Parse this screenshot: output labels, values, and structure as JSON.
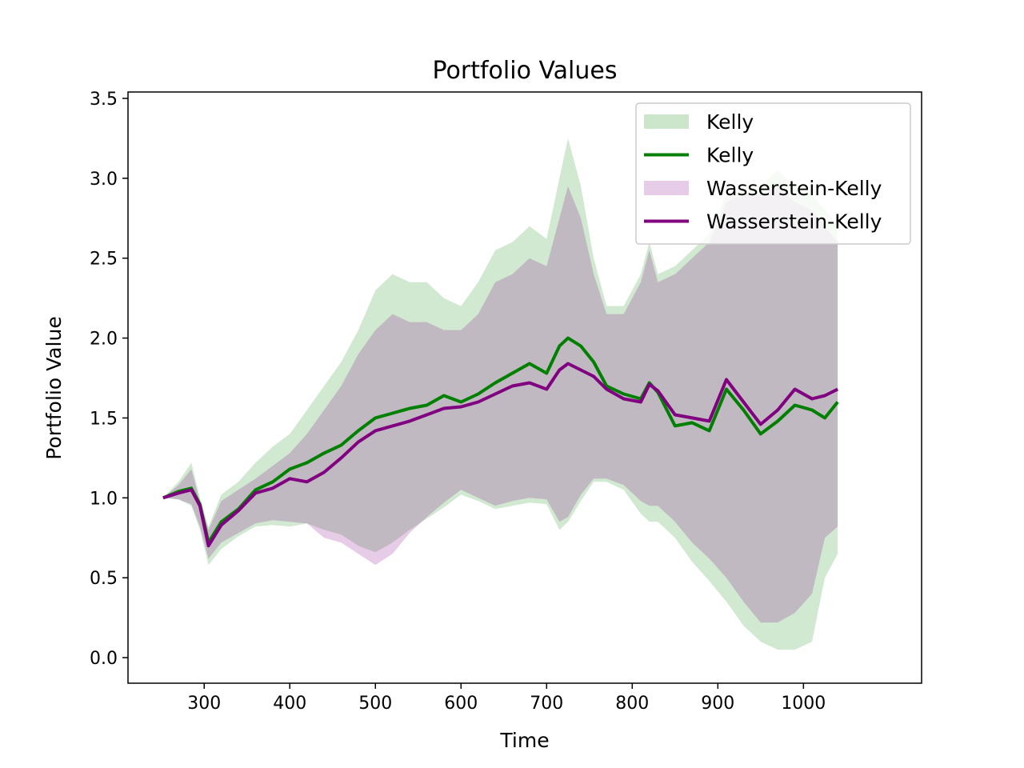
{
  "chart_data": {
    "type": "line",
    "title": "Portfolio Values",
    "xlabel": "Time",
    "ylabel": "Portfolio Value",
    "xlim": [
      211,
      1138
    ],
    "ylim": [
      -0.16,
      3.54
    ],
    "x_ticks": [
      300,
      400,
      500,
      600,
      700,
      800,
      900,
      1000
    ],
    "x_tick_labels": [
      "300",
      "400",
      "500",
      "600",
      "700",
      "800",
      "900",
      "1000"
    ],
    "y_ticks": [
      0.0,
      0.5,
      1.0,
      1.5,
      2.0,
      2.5,
      3.0,
      3.5
    ],
    "y_tick_labels": [
      "0.0",
      "0.5",
      "1.0",
      "1.5",
      "2.0",
      "2.5",
      "3.0",
      "3.5"
    ],
    "grid": false,
    "legend_position": "top-right",
    "legend": [
      {
        "label": "Kelly",
        "kind": "band",
        "color": "#008000"
      },
      {
        "label": "Kelly",
        "kind": "line",
        "color": "#008000"
      },
      {
        "label": "Wasserstein-Kelly",
        "kind": "band",
        "color": "#800080"
      },
      {
        "label": "Wasserstein-Kelly",
        "kind": "line",
        "color": "#800080"
      }
    ],
    "series": [
      {
        "name": "Kelly",
        "color": "#008000",
        "points": [
          [
            252,
            1.0
          ],
          [
            270,
            1.04
          ],
          [
            285,
            1.06
          ],
          [
            295,
            0.96
          ],
          [
            305,
            0.72
          ],
          [
            320,
            0.85
          ],
          [
            340,
            0.93
          ],
          [
            360,
            1.05
          ],
          [
            380,
            1.1
          ],
          [
            400,
            1.18
          ],
          [
            420,
            1.22
          ],
          [
            440,
            1.28
          ],
          [
            460,
            1.33
          ],
          [
            480,
            1.42
          ],
          [
            500,
            1.5
          ],
          [
            520,
            1.53
          ],
          [
            540,
            1.56
          ],
          [
            560,
            1.58
          ],
          [
            580,
            1.64
          ],
          [
            600,
            1.6
          ],
          [
            620,
            1.65
          ],
          [
            640,
            1.72
          ],
          [
            660,
            1.78
          ],
          [
            680,
            1.84
          ],
          [
            700,
            1.78
          ],
          [
            715,
            1.95
          ],
          [
            725,
            2.0
          ],
          [
            740,
            1.95
          ],
          [
            755,
            1.85
          ],
          [
            770,
            1.7
          ],
          [
            790,
            1.65
          ],
          [
            810,
            1.62
          ],
          [
            820,
            1.72
          ],
          [
            830,
            1.66
          ],
          [
            850,
            1.45
          ],
          [
            870,
            1.47
          ],
          [
            890,
            1.42
          ],
          [
            910,
            1.68
          ],
          [
            930,
            1.55
          ],
          [
            950,
            1.4
          ],
          [
            970,
            1.48
          ],
          [
            990,
            1.58
          ],
          [
            1010,
            1.55
          ],
          [
            1025,
            1.5
          ],
          [
            1040,
            1.6
          ]
        ],
        "band_upper": [
          [
            252,
            1.0
          ],
          [
            270,
            1.1
          ],
          [
            285,
            1.22
          ],
          [
            295,
            1.0
          ],
          [
            305,
            0.82
          ],
          [
            320,
            1.02
          ],
          [
            340,
            1.1
          ],
          [
            360,
            1.22
          ],
          [
            380,
            1.32
          ],
          [
            400,
            1.4
          ],
          [
            420,
            1.55
          ],
          [
            440,
            1.7
          ],
          [
            460,
            1.85
          ],
          [
            480,
            2.05
          ],
          [
            500,
            2.3
          ],
          [
            520,
            2.4
          ],
          [
            540,
            2.35
          ],
          [
            560,
            2.35
          ],
          [
            580,
            2.25
          ],
          [
            600,
            2.2
          ],
          [
            620,
            2.35
          ],
          [
            640,
            2.55
          ],
          [
            660,
            2.6
          ],
          [
            680,
            2.7
          ],
          [
            700,
            2.62
          ],
          [
            715,
            3.0
          ],
          [
            725,
            3.25
          ],
          [
            740,
            2.95
          ],
          [
            755,
            2.5
          ],
          [
            770,
            2.2
          ],
          [
            790,
            2.2
          ],
          [
            810,
            2.4
          ],
          [
            820,
            2.6
          ],
          [
            830,
            2.4
          ],
          [
            850,
            2.45
          ],
          [
            870,
            2.55
          ],
          [
            890,
            2.65
          ],
          [
            910,
            2.9
          ],
          [
            930,
            2.95
          ],
          [
            950,
            2.95
          ],
          [
            970,
            3.05
          ],
          [
            990,
            2.95
          ],
          [
            1010,
            2.9
          ],
          [
            1025,
            2.8
          ],
          [
            1040,
            2.7
          ]
        ],
        "band_lower": [
          [
            252,
            1.0
          ],
          [
            270,
            0.99
          ],
          [
            285,
            0.95
          ],
          [
            295,
            0.8
          ],
          [
            305,
            0.58
          ],
          [
            320,
            0.68
          ],
          [
            340,
            0.76
          ],
          [
            360,
            0.82
          ],
          [
            380,
            0.83
          ],
          [
            400,
            0.82
          ],
          [
            420,
            0.84
          ],
          [
            440,
            0.8
          ],
          [
            460,
            0.77
          ],
          [
            480,
            0.7
          ],
          [
            500,
            0.66
          ],
          [
            520,
            0.72
          ],
          [
            540,
            0.8
          ],
          [
            560,
            0.87
          ],
          [
            580,
            0.94
          ],
          [
            600,
            1.02
          ],
          [
            620,
            0.98
          ],
          [
            640,
            0.93
          ],
          [
            660,
            0.95
          ],
          [
            680,
            0.97
          ],
          [
            700,
            0.96
          ],
          [
            715,
            0.8
          ],
          [
            725,
            0.85
          ],
          [
            740,
            0.98
          ],
          [
            755,
            1.1
          ],
          [
            770,
            1.1
          ],
          [
            790,
            1.05
          ],
          [
            810,
            0.9
          ],
          [
            820,
            0.85
          ],
          [
            830,
            0.85
          ],
          [
            850,
            0.75
          ],
          [
            870,
            0.6
          ],
          [
            890,
            0.48
          ],
          [
            910,
            0.35
          ],
          [
            930,
            0.2
          ],
          [
            950,
            0.1
          ],
          [
            970,
            0.05
          ],
          [
            990,
            0.05
          ],
          [
            1010,
            0.1
          ],
          [
            1025,
            0.5
          ],
          [
            1040,
            0.65
          ]
        ]
      },
      {
        "name": "Wasserstein-Kelly",
        "color": "#800080",
        "points": [
          [
            252,
            1.0
          ],
          [
            270,
            1.03
          ],
          [
            285,
            1.05
          ],
          [
            295,
            0.95
          ],
          [
            305,
            0.7
          ],
          [
            320,
            0.83
          ],
          [
            340,
            0.92
          ],
          [
            360,
            1.03
          ],
          [
            380,
            1.06
          ],
          [
            400,
            1.12
          ],
          [
            420,
            1.1
          ],
          [
            440,
            1.16
          ],
          [
            460,
            1.25
          ],
          [
            480,
            1.35
          ],
          [
            500,
            1.42
          ],
          [
            520,
            1.45
          ],
          [
            540,
            1.48
          ],
          [
            560,
            1.52
          ],
          [
            580,
            1.56
          ],
          [
            600,
            1.57
          ],
          [
            620,
            1.6
          ],
          [
            640,
            1.65
          ],
          [
            660,
            1.7
          ],
          [
            680,
            1.72
          ],
          [
            700,
            1.68
          ],
          [
            715,
            1.8
          ],
          [
            725,
            1.84
          ],
          [
            740,
            1.8
          ],
          [
            755,
            1.76
          ],
          [
            770,
            1.68
          ],
          [
            790,
            1.62
          ],
          [
            810,
            1.6
          ],
          [
            820,
            1.71
          ],
          [
            830,
            1.67
          ],
          [
            850,
            1.52
          ],
          [
            870,
            1.5
          ],
          [
            890,
            1.48
          ],
          [
            910,
            1.74
          ],
          [
            930,
            1.6
          ],
          [
            950,
            1.46
          ],
          [
            970,
            1.55
          ],
          [
            990,
            1.68
          ],
          [
            1010,
            1.62
          ],
          [
            1025,
            1.64
          ],
          [
            1040,
            1.68
          ]
        ],
        "band_upper": [
          [
            252,
            1.0
          ],
          [
            270,
            1.08
          ],
          [
            285,
            1.18
          ],
          [
            295,
            0.98
          ],
          [
            305,
            0.8
          ],
          [
            320,
            0.98
          ],
          [
            340,
            1.05
          ],
          [
            360,
            1.12
          ],
          [
            380,
            1.2
          ],
          [
            400,
            1.28
          ],
          [
            420,
            1.4
          ],
          [
            440,
            1.55
          ],
          [
            460,
            1.7
          ],
          [
            480,
            1.9
          ],
          [
            500,
            2.05
          ],
          [
            520,
            2.15
          ],
          [
            540,
            2.1
          ],
          [
            560,
            2.1
          ],
          [
            580,
            2.05
          ],
          [
            600,
            2.05
          ],
          [
            620,
            2.15
          ],
          [
            640,
            2.35
          ],
          [
            660,
            2.4
          ],
          [
            680,
            2.5
          ],
          [
            700,
            2.45
          ],
          [
            715,
            2.75
          ],
          [
            725,
            2.95
          ],
          [
            740,
            2.75
          ],
          [
            755,
            2.4
          ],
          [
            770,
            2.15
          ],
          [
            790,
            2.15
          ],
          [
            810,
            2.35
          ],
          [
            820,
            2.55
          ],
          [
            830,
            2.35
          ],
          [
            850,
            2.4
          ],
          [
            870,
            2.5
          ],
          [
            890,
            2.6
          ],
          [
            910,
            2.85
          ],
          [
            930,
            2.9
          ],
          [
            950,
            2.9
          ],
          [
            970,
            2.95
          ],
          [
            990,
            2.85
          ],
          [
            1010,
            2.8
          ],
          [
            1025,
            2.7
          ],
          [
            1040,
            2.6
          ]
        ],
        "band_lower": [
          [
            252,
            1.0
          ],
          [
            270,
            0.99
          ],
          [
            285,
            0.96
          ],
          [
            295,
            0.82
          ],
          [
            305,
            0.62
          ],
          [
            320,
            0.72
          ],
          [
            340,
            0.78
          ],
          [
            360,
            0.84
          ],
          [
            380,
            0.86
          ],
          [
            400,
            0.85
          ],
          [
            420,
            0.84
          ],
          [
            440,
            0.75
          ],
          [
            460,
            0.72
          ],
          [
            480,
            0.65
          ],
          [
            500,
            0.58
          ],
          [
            520,
            0.65
          ],
          [
            540,
            0.78
          ],
          [
            560,
            0.88
          ],
          [
            580,
            0.97
          ],
          [
            600,
            1.05
          ],
          [
            620,
            1.0
          ],
          [
            640,
            0.95
          ],
          [
            660,
            0.98
          ],
          [
            680,
            1.0
          ],
          [
            700,
            0.99
          ],
          [
            715,
            0.85
          ],
          [
            725,
            0.88
          ],
          [
            740,
            1.02
          ],
          [
            755,
            1.12
          ],
          [
            770,
            1.12
          ],
          [
            790,
            1.08
          ],
          [
            810,
            0.98
          ],
          [
            820,
            0.95
          ],
          [
            830,
            0.95
          ],
          [
            850,
            0.85
          ],
          [
            870,
            0.72
          ],
          [
            890,
            0.62
          ],
          [
            910,
            0.5
          ],
          [
            930,
            0.35
          ],
          [
            950,
            0.22
          ],
          [
            970,
            0.22
          ],
          [
            990,
            0.28
          ],
          [
            1010,
            0.4
          ],
          [
            1025,
            0.75
          ],
          [
            1040,
            0.82
          ]
        ]
      }
    ]
  }
}
